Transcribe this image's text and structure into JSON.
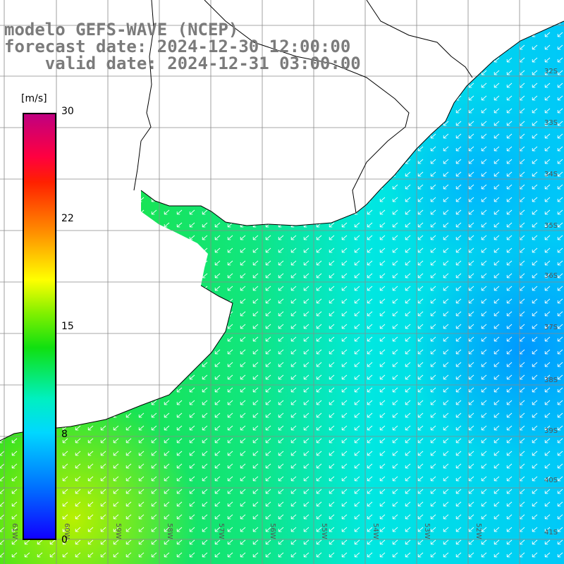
{
  "title": {
    "line1": "modelo GEFS-WAVE (NCEP)",
    "line2": "forecast date: 2024-12-30 12:00:00",
    "line3": "    valid date: 2024-12-31 03:00:00"
  },
  "colorbar": {
    "unit": "[m/s]",
    "ticks": [
      "30",
      "22",
      "15",
      "8",
      "0"
    ],
    "colors": [
      "#1000ff",
      "#0070ff",
      "#00d8ff",
      "#10e010",
      "#ffff00",
      "#ff9000",
      "#ff2000",
      "#c00080"
    ]
  },
  "lat_labels": [
    "32S",
    "33S",
    "34S",
    "35S",
    "36S",
    "37S",
    "38S",
    "39S",
    "40S",
    "41S"
  ],
  "lon_labels": [
    "61W",
    "60W",
    "59W",
    "58W",
    "57W",
    "56W",
    "55W",
    "54W",
    "53W",
    "52W"
  ],
  "map": {
    "field": "wind speed with direction arrows",
    "land_color": "#ffffff",
    "coastline_color": "#000000",
    "gridline_color": "#8a8a8a",
    "wind_arrow_color": "#ffffff"
  }
}
